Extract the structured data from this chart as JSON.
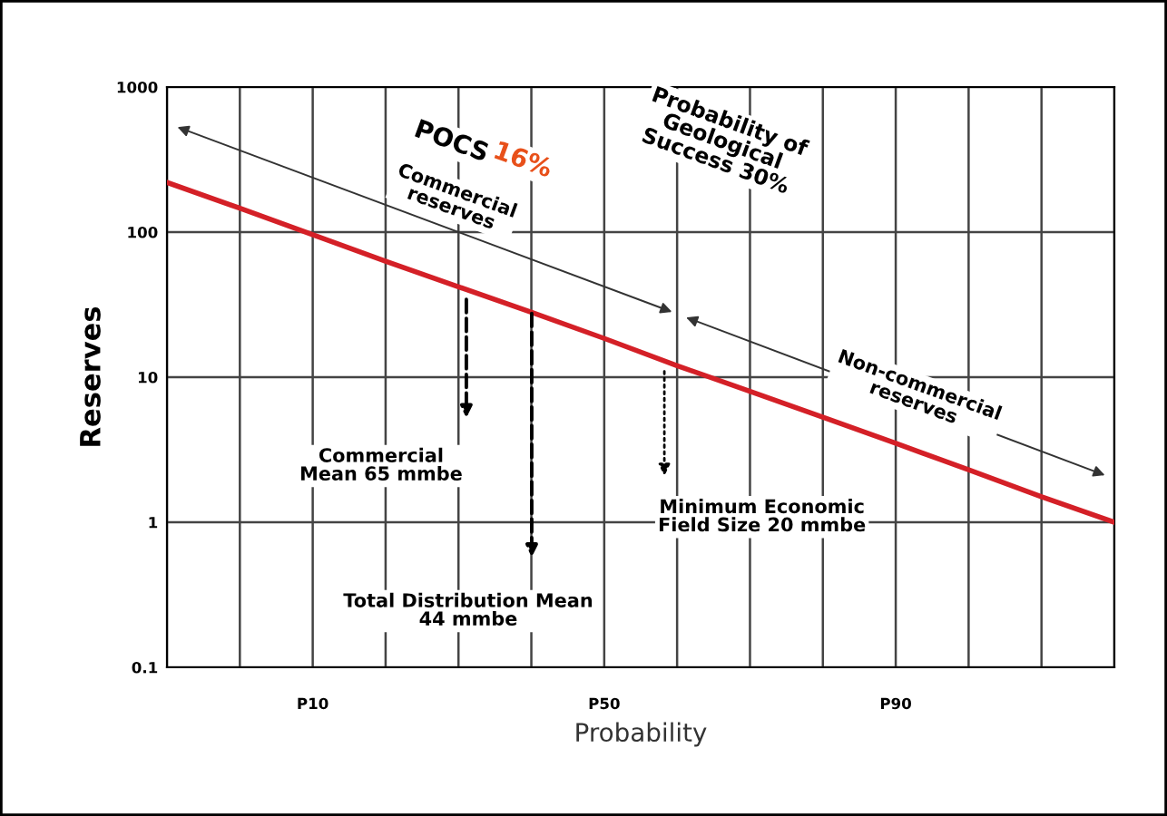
{
  "chart_data": {
    "type": "line",
    "xlabel": "Probability",
    "ylabel": "Reserves",
    "categories": [
      null,
      null,
      "P10",
      null,
      null,
      null,
      "P50",
      null,
      null,
      null,
      "P90",
      null,
      null,
      null
    ],
    "series": [
      {
        "color": "#d42027",
        "values": [
          220,
          146,
          96,
          63,
          42,
          28,
          18.5,
          12,
          8,
          5.3,
          3.5,
          2.3,
          1.5,
          1
        ]
      }
    ],
    "ylim": [
      0.1,
      1000
    ],
    "yticks": [
      1000,
      100,
      10,
      1,
      0.1
    ],
    "log": true,
    "grid": true,
    "marker": "none",
    "line_style": "solid",
    "annotations": [
      "POCS",
      "16%",
      "Commercial\nreserves",
      "Probability of\nGeological\nSuccess 30%",
      "Non-commercial\nreserves",
      "Commercial\nMean 65 mmbe",
      "Total Distribution Mean\n44 mmbe",
      "Minimum Economic\nField Size 20 mmbe"
    ]
  }
}
